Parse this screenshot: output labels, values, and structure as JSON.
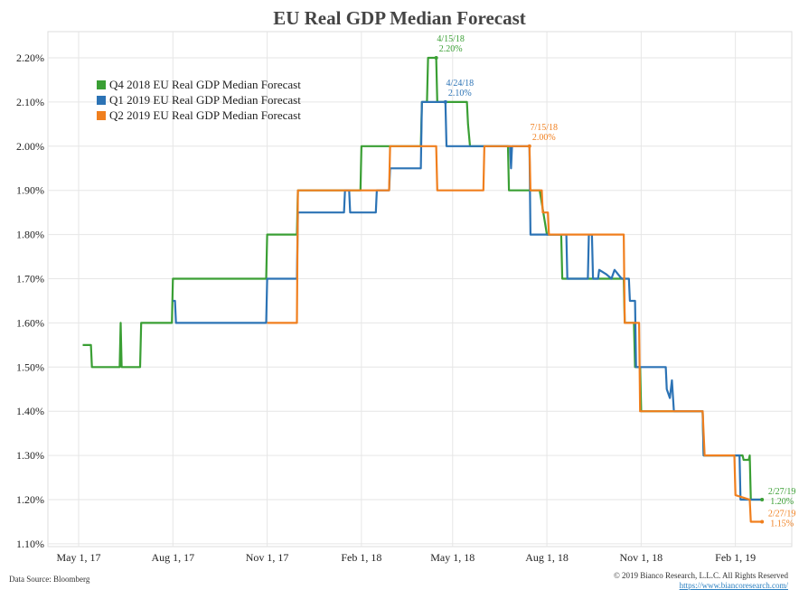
{
  "title": "EU Real GDP Median Forecast",
  "footer": {
    "source": "Data Source: Bloomberg",
    "copyright": "© 2019 Bianco Research, L.L.C. All Rights Reserved",
    "url": "https://www.biancoresearch.com/"
  },
  "colors": {
    "green": "#3a9f34",
    "blue": "#2c73b5",
    "orange": "#f07f1e",
    "grid": "#e6e6e6"
  },
  "chart_data": {
    "type": "line",
    "title": "EU Real GDP Median Forecast",
    "xlabel": "",
    "ylabel": "",
    "x_ticks": [
      "May 1, 17",
      "Aug 1, 17",
      "Nov 1, 17",
      "Feb 1, 18",
      "May 1, 18",
      "Aug 1, 18",
      "Nov 1, 18",
      "Feb 1, 19"
    ],
    "x_range": [
      "2017-04-01",
      "2019-03-28"
    ],
    "y_ticks": [
      "2.20%",
      "2.10%",
      "2.00%",
      "1.90%",
      "1.80%",
      "1.70%",
      "1.60%",
      "1.50%",
      "1.40%",
      "1.30%",
      "1.20%",
      "1.10%"
    ],
    "ylim": [
      1.1,
      2.3
    ],
    "grid": true,
    "legend_position": "top-left",
    "series": [
      {
        "name": "Q4 2018 EU Real GDP Median Forecast",
        "color": "#3a9f34",
        "points": [
          [
            "2017-05-05",
            1.55
          ],
          [
            "2017-05-13",
            1.55
          ],
          [
            "2017-05-14",
            1.5
          ],
          [
            "2017-06-10",
            1.5
          ],
          [
            "2017-06-11",
            1.6
          ],
          [
            "2017-06-12",
            1.5
          ],
          [
            "2017-06-30",
            1.5
          ],
          [
            "2017-07-01",
            1.6
          ],
          [
            "2017-07-31",
            1.6
          ],
          [
            "2017-08-01",
            1.7
          ],
          [
            "2017-10-31",
            1.7
          ],
          [
            "2017-11-01",
            1.8
          ],
          [
            "2017-11-30",
            1.8
          ],
          [
            "2017-12-01",
            1.9
          ],
          [
            "2018-01-31",
            1.9
          ],
          [
            "2018-02-01",
            2.0
          ],
          [
            "2018-03-31",
            2.0
          ],
          [
            "2018-04-01",
            2.1
          ],
          [
            "2018-04-06",
            2.1
          ],
          [
            "2018-04-07",
            2.2
          ],
          [
            "2018-04-15",
            2.2
          ],
          [
            "2018-04-16",
            2.1
          ],
          [
            "2018-05-15",
            2.1
          ],
          [
            "2018-05-16",
            2.05
          ],
          [
            "2018-05-18",
            2.0
          ],
          [
            "2018-06-24",
            2.0
          ],
          [
            "2018-06-25",
            1.9
          ],
          [
            "2018-07-25",
            1.9
          ],
          [
            "2018-08-01",
            1.8
          ],
          [
            "2018-08-15",
            1.8
          ],
          [
            "2018-08-16",
            1.7
          ],
          [
            "2018-10-15",
            1.7
          ],
          [
            "2018-10-16",
            1.6
          ],
          [
            "2018-10-25",
            1.6
          ],
          [
            "2018-10-26",
            1.5
          ],
          [
            "2018-10-31",
            1.5
          ],
          [
            "2018-11-01",
            1.4
          ],
          [
            "2018-12-31",
            1.4
          ],
          [
            "2019-01-01",
            1.3
          ],
          [
            "2019-02-08",
            1.3
          ],
          [
            "2019-02-09",
            1.29
          ],
          [
            "2019-02-14",
            1.29
          ],
          [
            "2019-02-15",
            1.3
          ],
          [
            "2019-02-16",
            1.2
          ],
          [
            "2019-02-27",
            1.2
          ]
        ]
      },
      {
        "name": "Q1 2019 EU Real GDP Median Forecast",
        "color": "#2c73b5",
        "points": [
          [
            "2017-08-01",
            1.65
          ],
          [
            "2017-08-03",
            1.65
          ],
          [
            "2017-08-04",
            1.6
          ],
          [
            "2017-10-31",
            1.6
          ],
          [
            "2017-11-01",
            1.7
          ],
          [
            "2017-11-30",
            1.7
          ],
          [
            "2017-12-01",
            1.85
          ],
          [
            "2018-01-15",
            1.85
          ],
          [
            "2018-01-16",
            1.9
          ],
          [
            "2018-01-20",
            1.9
          ],
          [
            "2018-01-21",
            1.85
          ],
          [
            "2018-02-15",
            1.85
          ],
          [
            "2018-02-16",
            1.9
          ],
          [
            "2018-02-28",
            1.9
          ],
          [
            "2018-03-01",
            1.95
          ],
          [
            "2018-03-31",
            1.95
          ],
          [
            "2018-04-01",
            2.1
          ],
          [
            "2018-04-24",
            2.1
          ],
          [
            "2018-04-25",
            2.0
          ],
          [
            "2018-06-26",
            2.0
          ],
          [
            "2018-06-27",
            1.95
          ],
          [
            "2018-06-28",
            2.0
          ],
          [
            "2018-07-15",
            2.0
          ],
          [
            "2018-07-16",
            1.8
          ],
          [
            "2018-08-20",
            1.8
          ],
          [
            "2018-08-21",
            1.7
          ],
          [
            "2018-09-10",
            1.7
          ],
          [
            "2018-09-11",
            1.8
          ],
          [
            "2018-09-14",
            1.8
          ],
          [
            "2018-09-15",
            1.7
          ],
          [
            "2018-09-20",
            1.7
          ],
          [
            "2018-09-21",
            1.72
          ],
          [
            "2018-09-28",
            1.71
          ],
          [
            "2018-10-03",
            1.7
          ],
          [
            "2018-10-06",
            1.72
          ],
          [
            "2018-10-13",
            1.7
          ],
          [
            "2018-10-20",
            1.7
          ],
          [
            "2018-10-21",
            1.65
          ],
          [
            "2018-10-26",
            1.65
          ],
          [
            "2018-10-27",
            1.5
          ],
          [
            "2018-11-25",
            1.5
          ],
          [
            "2018-11-26",
            1.45
          ],
          [
            "2018-11-29",
            1.43
          ],
          [
            "2018-12-01",
            1.47
          ],
          [
            "2018-12-03",
            1.4
          ],
          [
            "2018-12-31",
            1.4
          ],
          [
            "2019-01-01",
            1.3
          ],
          [
            "2019-02-05",
            1.3
          ],
          [
            "2019-02-06",
            1.2
          ],
          [
            "2019-02-27",
            1.2
          ]
        ]
      },
      {
        "name": "Q2 2019 EU Real GDP Median Forecast",
        "color": "#f07f1e",
        "points": [
          [
            "2017-11-01",
            1.6
          ],
          [
            "2017-11-30",
            1.6
          ],
          [
            "2017-12-01",
            1.9
          ],
          [
            "2018-02-28",
            1.9
          ],
          [
            "2018-03-01",
            2.0
          ],
          [
            "2018-04-15",
            2.0
          ],
          [
            "2018-04-16",
            1.9
          ],
          [
            "2018-05-31",
            1.9
          ],
          [
            "2018-06-01",
            2.0
          ],
          [
            "2018-07-15",
            2.0
          ],
          [
            "2018-07-16",
            1.9
          ],
          [
            "2018-07-27",
            1.9
          ],
          [
            "2018-07-28",
            1.85
          ],
          [
            "2018-08-02",
            1.85
          ],
          [
            "2018-08-03",
            1.8
          ],
          [
            "2018-10-15",
            1.8
          ],
          [
            "2018-10-16",
            1.6
          ],
          [
            "2018-10-30",
            1.6
          ],
          [
            "2018-10-31",
            1.4
          ],
          [
            "2018-12-31",
            1.4
          ],
          [
            "2019-01-01",
            1.35
          ],
          [
            "2019-01-02",
            1.3
          ],
          [
            "2019-01-31",
            1.3
          ],
          [
            "2019-02-01",
            1.21
          ],
          [
            "2019-02-15",
            1.2
          ],
          [
            "2019-02-16",
            1.15
          ],
          [
            "2019-02-27",
            1.15
          ]
        ]
      }
    ],
    "annotations": [
      {
        "series": 0,
        "date": "2018-04-15",
        "value": 2.2,
        "label_date": "4/15/18",
        "label_value": "2.20%",
        "placement": "above"
      },
      {
        "series": 1,
        "date": "2018-04-24",
        "value": 2.1,
        "label_date": "4/24/18",
        "label_value": "2.10%",
        "placement": "above-right"
      },
      {
        "series": 2,
        "date": "2018-07-15",
        "value": 2.0,
        "label_date": "7/15/18",
        "label_value": "2.00%",
        "placement": "above-right"
      },
      {
        "series": 0,
        "date": "2019-02-27",
        "value": 1.2,
        "label_date": "2/27/19",
        "label_value": "1.20%",
        "placement": "right-above"
      },
      {
        "series": 2,
        "date": "2019-02-27",
        "value": 1.15,
        "label_date": "2/27/19",
        "label_value": "1.15%",
        "placement": "right-above"
      }
    ]
  }
}
